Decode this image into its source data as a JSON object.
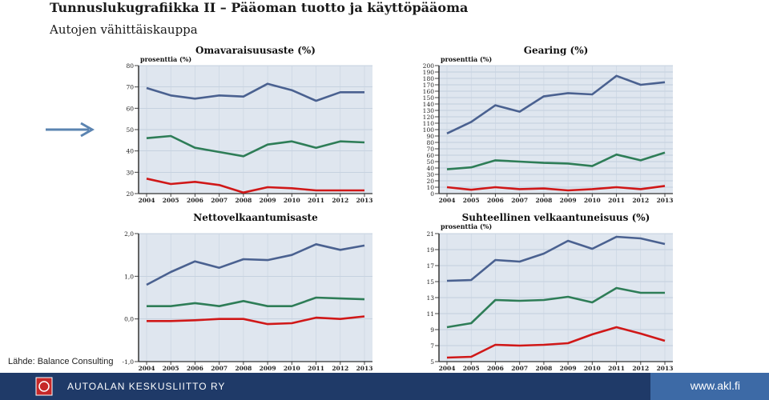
{
  "slide": {
    "title": "Tunnuslukugrafiikka II – Pääoman tuotto ja käyttöpääoma",
    "subtitle": "Autojen vähittäiskauppa",
    "source": "Lähde: Balance Consulting"
  },
  "footer": {
    "org": "AUTOALAN KESKUSLIITTO RY",
    "url": "www.akl.fi"
  },
  "colors": {
    "series_blue": "#4a6190",
    "series_green": "#2e7d57",
    "series_red": "#d01818",
    "plot_bg": "#dfe6ef",
    "arrow": "#5b84b1"
  },
  "chart_data": [
    {
      "type": "line",
      "title": "Omavaraisuusaste (%)",
      "unit_label": "prosenttia (%)",
      "x": [
        "2004",
        "2005",
        "2006",
        "2007",
        "2008",
        "2009",
        "2010",
        "2011",
        "2012",
        "2013"
      ],
      "ylim": [
        20,
        80
      ],
      "yticks": [
        20,
        30,
        40,
        50,
        60,
        70,
        80
      ],
      "series": [
        {
          "color": "#4a6190",
          "values": [
            69.5,
            66,
            64.5,
            66,
            65.5,
            71.5,
            68.5,
            63.5,
            67.5,
            67.5
          ]
        },
        {
          "color": "#2e7d57",
          "values": [
            46,
            47,
            41.5,
            39.5,
            37.5,
            43,
            44.5,
            41.5,
            44.5,
            44
          ]
        },
        {
          "color": "#d01818",
          "values": [
            27,
            24.5,
            25.5,
            24,
            20.5,
            23,
            22.5,
            21.5,
            21.5,
            21.5
          ]
        }
      ]
    },
    {
      "type": "line",
      "title": "Gearing (%)",
      "unit_label": "prosenttia (%)",
      "x": [
        "2004",
        "2005",
        "2006",
        "2007",
        "2008",
        "2009",
        "2010",
        "2011",
        "2012",
        "2013"
      ],
      "ylim": [
        0,
        200
      ],
      "yticks": [
        0,
        10,
        20,
        30,
        40,
        50,
        60,
        70,
        80,
        90,
        100,
        110,
        120,
        130,
        140,
        150,
        160,
        170,
        180,
        190,
        200
      ],
      "series": [
        {
          "color": "#4a6190",
          "values": [
            94,
            112,
            138,
            128,
            152,
            157,
            155,
            184,
            170,
            174
          ]
        },
        {
          "color": "#2e7d57",
          "values": [
            38,
            41,
            52,
            50,
            48,
            47,
            43,
            61,
            52,
            64
          ]
        },
        {
          "color": "#d01818",
          "values": [
            10,
            6,
            10,
            7,
            8,
            5,
            7,
            10,
            7,
            12
          ]
        }
      ]
    },
    {
      "type": "line",
      "title": "Nettovelkaantumisaste",
      "unit_label": "",
      "x": [
        "2004",
        "2005",
        "2006",
        "2007",
        "2008",
        "2009",
        "2010",
        "2011",
        "2012",
        "2013"
      ],
      "ylim": [
        -1.0,
        2.0
      ],
      "yticks": [
        -1.0,
        0.0,
        1.0,
        2.0
      ],
      "ytick_labels": [
        "-1,0",
        "0,0",
        "1,0",
        "2,0"
      ],
      "series": [
        {
          "color": "#4a6190",
          "values": [
            0.8,
            1.1,
            1.35,
            1.2,
            1.4,
            1.38,
            1.5,
            1.75,
            1.62,
            1.72
          ]
        },
        {
          "color": "#2e7d57",
          "values": [
            0.3,
            0.3,
            0.37,
            0.3,
            0.42,
            0.3,
            0.3,
            0.5,
            0.48,
            0.46
          ]
        },
        {
          "color": "#d01818",
          "values": [
            -0.05,
            -0.05,
            -0.03,
            0.0,
            0.0,
            -0.12,
            -0.1,
            0.03,
            0.0,
            0.06
          ]
        }
      ]
    },
    {
      "type": "line",
      "title": "Suhteellinen velkaantuneisuus (%)",
      "unit_label": "prosenttia (%)",
      "x": [
        "2004",
        "2005",
        "2006",
        "2007",
        "2008",
        "2009",
        "2010",
        "2011",
        "2012",
        "2013"
      ],
      "ylim": [
        5,
        21
      ],
      "yticks": [
        5,
        7,
        9,
        11,
        13,
        15,
        17,
        19,
        21
      ],
      "series": [
        {
          "color": "#4a6190",
          "values": [
            15.1,
            15.2,
            17.7,
            17.5,
            18.5,
            20.1,
            19.1,
            20.6,
            20.4,
            19.7
          ]
        },
        {
          "color": "#2e7d57",
          "values": [
            9.3,
            9.8,
            12.7,
            12.6,
            12.7,
            13.1,
            12.4,
            14.2,
            13.6,
            13.6
          ]
        },
        {
          "color": "#d01818",
          "values": [
            5.5,
            5.6,
            7.1,
            7,
            7.1,
            7.3,
            8.4,
            9.3,
            8.5,
            7.6
          ]
        }
      ]
    }
  ]
}
